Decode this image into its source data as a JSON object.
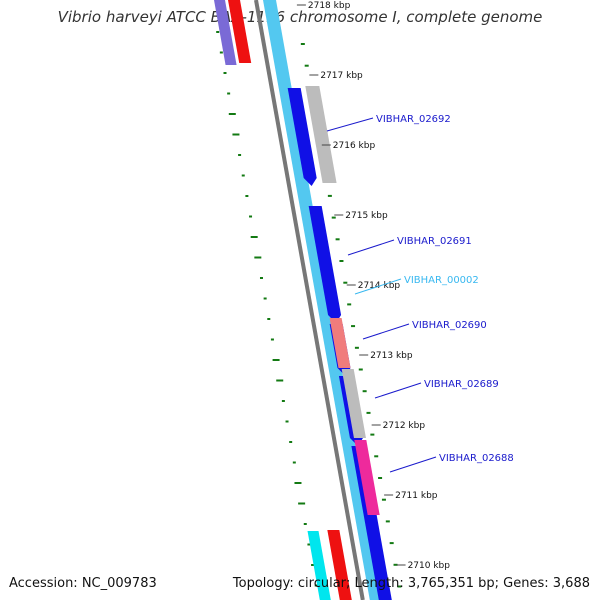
{
  "title": "Vibrio harveyi ATCC BAA-1116 chromosome I, complete genome",
  "accession": "Accession: NC_009783",
  "stats": "Topology: circular; Length: 3,765,351 bp; Genes: 3,688",
  "colors": {
    "backbone": "#777777",
    "track_outer": "#53c8f0",
    "track_blue": "#1010e6",
    "gene_gray": "#bcbcbc",
    "gene_salmon": "#f07c7c",
    "gene_pink": "#ee2a9c",
    "gene_red": "#ee1111",
    "gene_purple": "#7a6ad6",
    "gene_cyan": "#00e6ee",
    "label_blue": "#1a1acc",
    "label_cyan": "#38b8f0",
    "gc_green": "#137a13",
    "ruler": "#444444"
  },
  "ruler": {
    "tick_labels": [
      "2718 kbp",
      "2717 kbp",
      "2716 kbp",
      "2715 kbp",
      "2714 kbp",
      "2713 kbp",
      "2712 kbp",
      "2711 kbp",
      "2710 kbp"
    ]
  },
  "gene_labels": [
    {
      "text": "VIBHAR_02692",
      "color": "label_blue"
    },
    {
      "text": "VIBHAR_02691",
      "color": "label_blue"
    },
    {
      "text": "VIBHAR_00002",
      "color": "label_cyan"
    },
    {
      "text": "VIBHAR_02690",
      "color": "label_blue"
    },
    {
      "text": "VIBHAR_02689",
      "color": "label_blue"
    },
    {
      "text": "VIBHAR_02688",
      "color": "label_blue"
    }
  ]
}
